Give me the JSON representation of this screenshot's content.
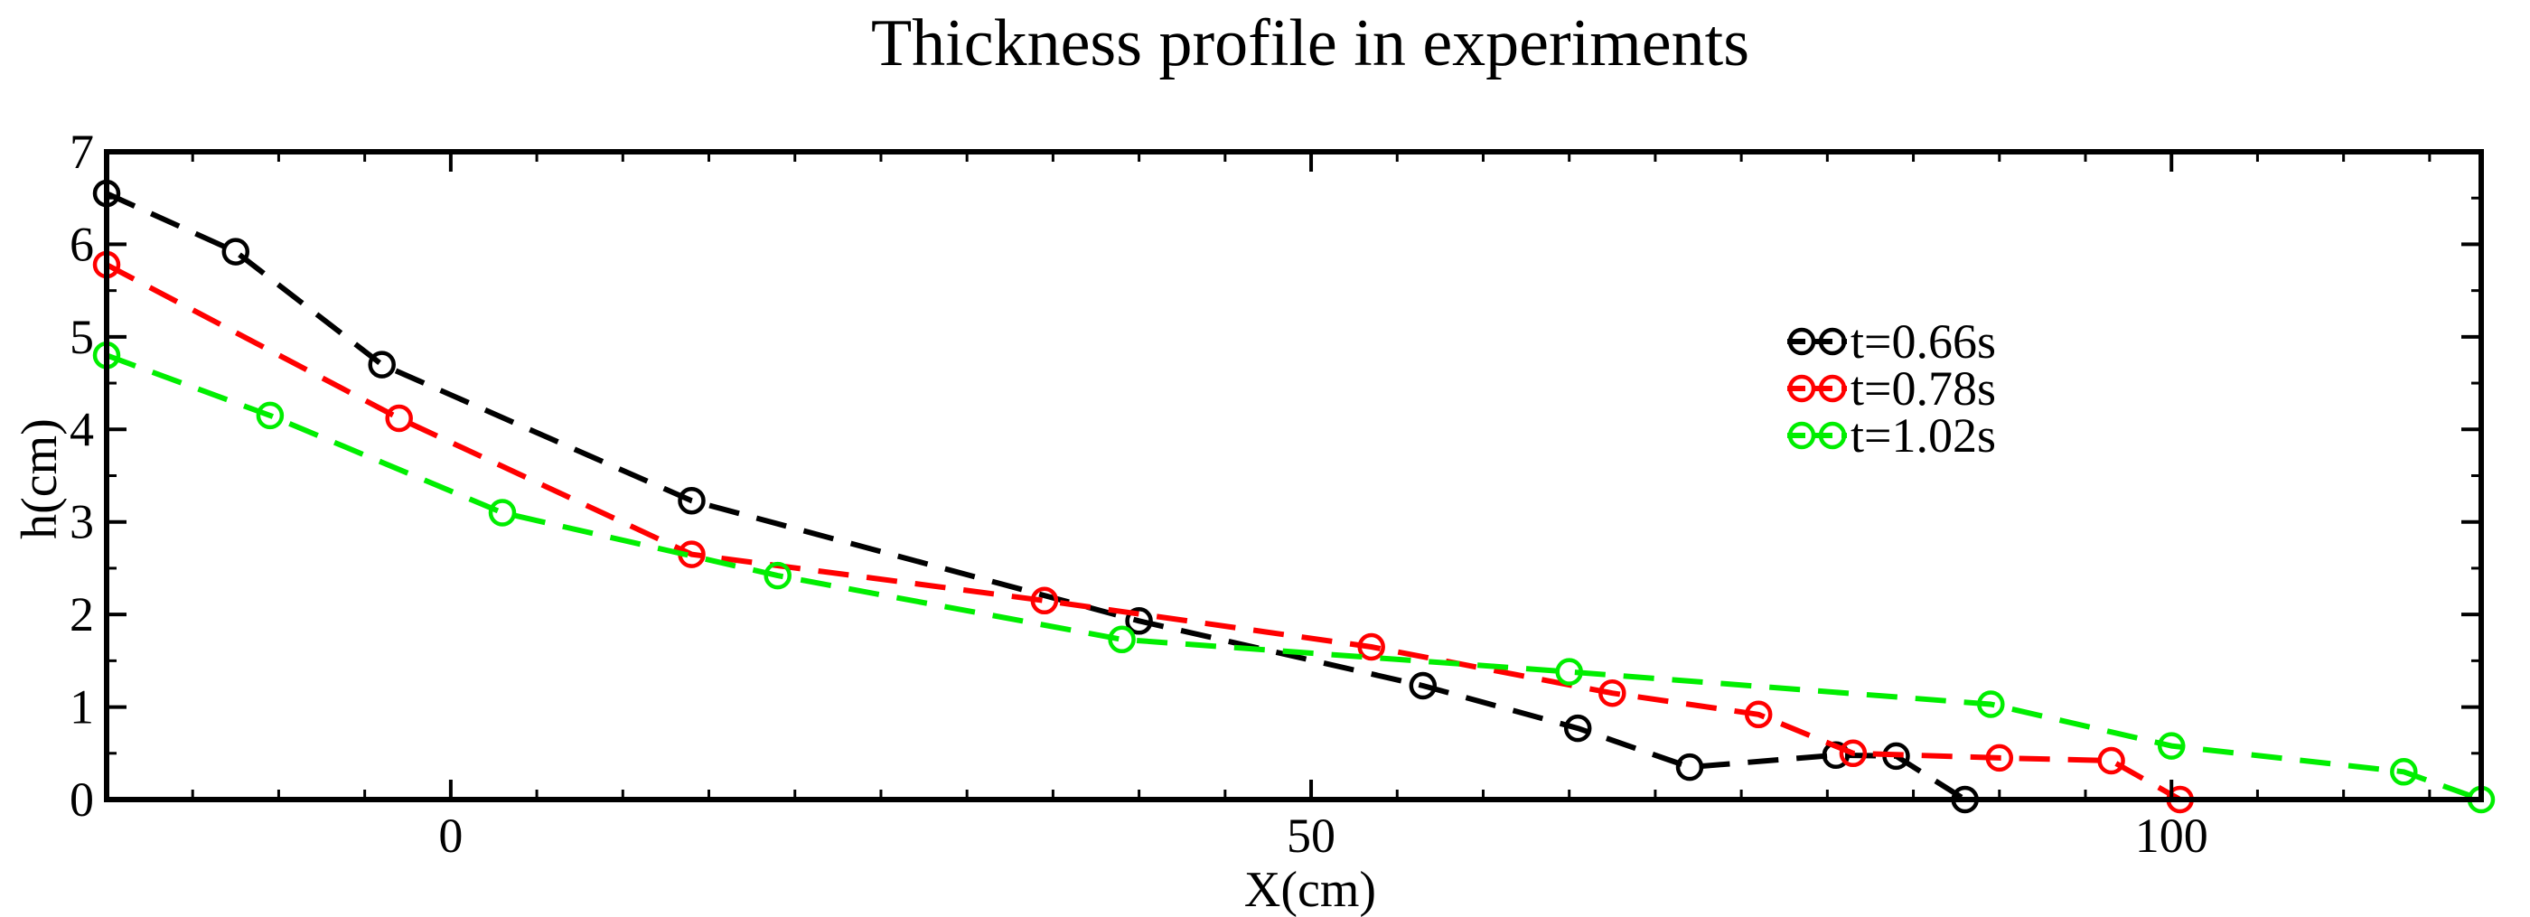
{
  "chart_data": {
    "type": "line",
    "title": "Thickness profile in experiments",
    "xlabel": "X(cm)",
    "ylabel": "h(cm)",
    "xlim": [
      -20,
      118
    ],
    "ylim": [
      0,
      7
    ],
    "xticks": [
      0,
      50,
      100
    ],
    "xtick_labels": [
      "0",
      "50",
      "100"
    ],
    "xminor_step": 5,
    "yticks": [
      0,
      1,
      2,
      3,
      4,
      5,
      6,
      7
    ],
    "ytick_labels": [
      "0",
      "1",
      "2",
      "3",
      "4",
      "5",
      "6",
      "7"
    ],
    "yminor_step": 0.5,
    "grid": false,
    "legend_position": "right",
    "line_style": "dashed",
    "marker": "circle",
    "series": [
      {
        "name": "t=0.66s",
        "color": "#000000",
        "x": [
          -20,
          -12.5,
          -4,
          14,
          40,
          56.5,
          65.5,
          72,
          80.5,
          84,
          88
        ],
        "y": [
          6.55,
          5.92,
          4.7,
          3.23,
          1.93,
          1.23,
          0.77,
          0.35,
          0.48,
          0.47,
          0.0
        ]
      },
      {
        "name": "t=0.78s",
        "color": "#ff0000",
        "x": [
          -20,
          -3,
          14,
          34.5,
          53.5,
          67.5,
          76,
          81.5,
          90,
          96.5,
          100.5
        ],
        "y": [
          5.78,
          4.12,
          2.65,
          2.15,
          1.65,
          1.15,
          0.92,
          0.5,
          0.45,
          0.42,
          0.0
        ]
      },
      {
        "name": "t=1.02s",
        "color": "#00ee00",
        "x": [
          -20,
          -10.5,
          3,
          19,
          39,
          65,
          89.5,
          100,
          113.5,
          118
        ],
        "y": [
          4.8,
          4.15,
          3.1,
          2.42,
          1.73,
          1.38,
          1.03,
          0.58,
          0.3,
          0.0
        ]
      }
    ]
  }
}
